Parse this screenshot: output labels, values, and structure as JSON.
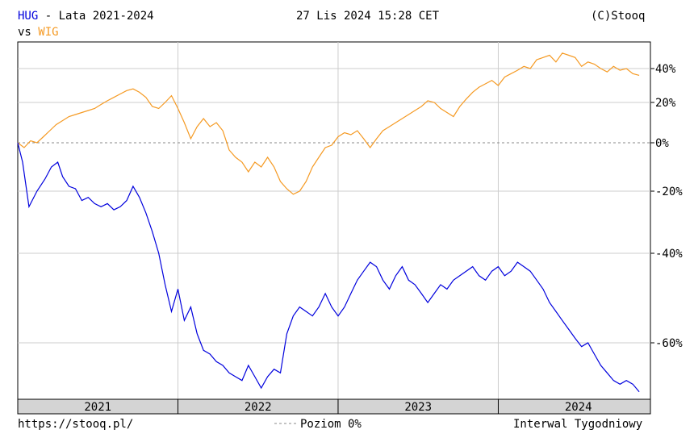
{
  "header": {
    "ticker": "HUG",
    "title_rest": " - Lata 2021-2024",
    "vs_label": "vs",
    "compare_ticker": "WIG",
    "datetime": "27 Lis 2024 15:28 CET",
    "copyright": "(C)Stooq"
  },
  "footer": {
    "url": "https://stooq.pl/",
    "level_label": "Poziom 0%",
    "interval": "Interwal Tygodniowy"
  },
  "colors": {
    "hug": "#0000dd",
    "wig": "#f59a23",
    "grid": "#cccccc",
    "zero_line": "#888888",
    "axis_band": "#d4d4d4"
  },
  "chart_data": {
    "type": "line",
    "x_unit": "year",
    "xlim": [
      2021.0,
      2024.95
    ],
    "ylim": [
      -75,
      52
    ],
    "y_scale": "custom-stooq",
    "y_ticks": [
      {
        "value": 40,
        "label": "40%"
      },
      {
        "value": 20,
        "label": "20%"
      },
      {
        "value": 0,
        "label": "0%"
      },
      {
        "value": -20,
        "label": "-20%"
      },
      {
        "value": -40,
        "label": "-40%"
      },
      {
        "value": -60,
        "label": "-60%"
      }
    ],
    "x_ticks": [
      {
        "value": 2021.5,
        "label": "2021"
      },
      {
        "value": 2022.5,
        "label": "2022"
      },
      {
        "value": 2023.5,
        "label": "2023"
      },
      {
        "value": 2024.5,
        "label": "2024"
      }
    ],
    "year_boundaries": [
      2022.0,
      2023.0,
      2024.0
    ],
    "grid": true,
    "zero_line_dashed": true,
    "series": [
      {
        "name": "HUG",
        "points": [
          [
            2021.0,
            0
          ],
          [
            2021.03,
            -8
          ],
          [
            2021.07,
            -25
          ],
          [
            2021.12,
            -20
          ],
          [
            2021.17,
            -15
          ],
          [
            2021.21,
            -10
          ],
          [
            2021.25,
            -8
          ],
          [
            2021.28,
            -14
          ],
          [
            2021.32,
            -18
          ],
          [
            2021.36,
            -19
          ],
          [
            2021.4,
            -23
          ],
          [
            2021.44,
            -22
          ],
          [
            2021.48,
            -24
          ],
          [
            2021.52,
            -25
          ],
          [
            2021.56,
            -24
          ],
          [
            2021.6,
            -26
          ],
          [
            2021.64,
            -25
          ],
          [
            2021.68,
            -23
          ],
          [
            2021.72,
            -18
          ],
          [
            2021.76,
            -22
          ],
          [
            2021.8,
            -27
          ],
          [
            2021.84,
            -33
          ],
          [
            2021.88,
            -40
          ],
          [
            2021.92,
            -47
          ],
          [
            2021.96,
            -53
          ],
          [
            2022.0,
            -48
          ],
          [
            2022.04,
            -55
          ],
          [
            2022.08,
            -52
          ],
          [
            2022.12,
            -58
          ],
          [
            2022.16,
            -62
          ],
          [
            2022.2,
            -63
          ],
          [
            2022.24,
            -65
          ],
          [
            2022.28,
            -66
          ],
          [
            2022.32,
            -68
          ],
          [
            2022.36,
            -69
          ],
          [
            2022.4,
            -70
          ],
          [
            2022.44,
            -66
          ],
          [
            2022.48,
            -69
          ],
          [
            2022.52,
            -72
          ],
          [
            2022.56,
            -69
          ],
          [
            2022.6,
            -67
          ],
          [
            2022.64,
            -68
          ],
          [
            2022.68,
            -58
          ],
          [
            2022.72,
            -54
          ],
          [
            2022.76,
            -52
          ],
          [
            2022.8,
            -53
          ],
          [
            2022.84,
            -54
          ],
          [
            2022.88,
            -52
          ],
          [
            2022.92,
            -49
          ],
          [
            2022.96,
            -52
          ],
          [
            2023.0,
            -54
          ],
          [
            2023.04,
            -52
          ],
          [
            2023.08,
            -49
          ],
          [
            2023.12,
            -46
          ],
          [
            2023.16,
            -44
          ],
          [
            2023.2,
            -42
          ],
          [
            2023.24,
            -43
          ],
          [
            2023.28,
            -46
          ],
          [
            2023.32,
            -48
          ],
          [
            2023.36,
            -45
          ],
          [
            2023.4,
            -43
          ],
          [
            2023.44,
            -46
          ],
          [
            2023.48,
            -47
          ],
          [
            2023.52,
            -49
          ],
          [
            2023.56,
            -51
          ],
          [
            2023.6,
            -49
          ],
          [
            2023.64,
            -47
          ],
          [
            2023.68,
            -48
          ],
          [
            2023.72,
            -46
          ],
          [
            2023.76,
            -45
          ],
          [
            2023.8,
            -44
          ],
          [
            2023.84,
            -43
          ],
          [
            2023.88,
            -45
          ],
          [
            2023.92,
            -46
          ],
          [
            2023.96,
            -44
          ],
          [
            2024.0,
            -43
          ],
          [
            2024.04,
            -45
          ],
          [
            2024.08,
            -44
          ],
          [
            2024.12,
            -42
          ],
          [
            2024.16,
            -43
          ],
          [
            2024.2,
            -44
          ],
          [
            2024.24,
            -46
          ],
          [
            2024.28,
            -48
          ],
          [
            2024.32,
            -51
          ],
          [
            2024.36,
            -53
          ],
          [
            2024.4,
            -55
          ],
          [
            2024.44,
            -57
          ],
          [
            2024.48,
            -59
          ],
          [
            2024.52,
            -61
          ],
          [
            2024.56,
            -60
          ],
          [
            2024.6,
            -63
          ],
          [
            2024.64,
            -66
          ],
          [
            2024.68,
            -68
          ],
          [
            2024.72,
            -70
          ],
          [
            2024.76,
            -71
          ],
          [
            2024.8,
            -70
          ],
          [
            2024.84,
            -71
          ],
          [
            2024.88,
            -73
          ]
        ]
      },
      {
        "name": "WIG",
        "points": [
          [
            2021.0,
            0
          ],
          [
            2021.04,
            -2
          ],
          [
            2021.08,
            1
          ],
          [
            2021.12,
            0
          ],
          [
            2021.16,
            3
          ],
          [
            2021.2,
            6
          ],
          [
            2021.24,
            9
          ],
          [
            2021.28,
            11
          ],
          [
            2021.32,
            13
          ],
          [
            2021.36,
            14
          ],
          [
            2021.4,
            15
          ],
          [
            2021.44,
            16
          ],
          [
            2021.48,
            17
          ],
          [
            2021.52,
            19
          ],
          [
            2021.56,
            21
          ],
          [
            2021.6,
            23
          ],
          [
            2021.64,
            25
          ],
          [
            2021.68,
            27
          ],
          [
            2021.72,
            28
          ],
          [
            2021.76,
            26
          ],
          [
            2021.8,
            23
          ],
          [
            2021.84,
            18
          ],
          [
            2021.88,
            17
          ],
          [
            2021.92,
            20
          ],
          [
            2021.96,
            24
          ],
          [
            2022.0,
            17
          ],
          [
            2022.04,
            10
          ],
          [
            2022.08,
            2
          ],
          [
            2022.12,
            8
          ],
          [
            2022.16,
            12
          ],
          [
            2022.2,
            8
          ],
          [
            2022.24,
            10
          ],
          [
            2022.28,
            6
          ],
          [
            2022.32,
            -3
          ],
          [
            2022.36,
            -6
          ],
          [
            2022.4,
            -8
          ],
          [
            2022.44,
            -12
          ],
          [
            2022.48,
            -8
          ],
          [
            2022.52,
            -10
          ],
          [
            2022.56,
            -6
          ],
          [
            2022.6,
            -10
          ],
          [
            2022.64,
            -16
          ],
          [
            2022.68,
            -19
          ],
          [
            2022.72,
            -21
          ],
          [
            2022.76,
            -20
          ],
          [
            2022.8,
            -16
          ],
          [
            2022.84,
            -10
          ],
          [
            2022.88,
            -6
          ],
          [
            2022.92,
            -2
          ],
          [
            2022.96,
            -1
          ],
          [
            2023.0,
            3
          ],
          [
            2023.04,
            5
          ],
          [
            2023.08,
            4
          ],
          [
            2023.12,
            6
          ],
          [
            2023.16,
            2
          ],
          [
            2023.2,
            -2
          ],
          [
            2023.24,
            2
          ],
          [
            2023.28,
            6
          ],
          [
            2023.32,
            8
          ],
          [
            2023.36,
            10
          ],
          [
            2023.4,
            12
          ],
          [
            2023.44,
            14
          ],
          [
            2023.48,
            16
          ],
          [
            2023.52,
            18
          ],
          [
            2023.56,
            21
          ],
          [
            2023.6,
            20
          ],
          [
            2023.64,
            17
          ],
          [
            2023.68,
            15
          ],
          [
            2023.72,
            13
          ],
          [
            2023.76,
            18
          ],
          [
            2023.8,
            22
          ],
          [
            2023.84,
            26
          ],
          [
            2023.88,
            29
          ],
          [
            2023.92,
            31
          ],
          [
            2023.96,
            33
          ],
          [
            2024.0,
            30
          ],
          [
            2024.04,
            35
          ],
          [
            2024.08,
            37
          ],
          [
            2024.12,
            39
          ],
          [
            2024.16,
            41
          ],
          [
            2024.2,
            40
          ],
          [
            2024.24,
            44
          ],
          [
            2024.28,
            45
          ],
          [
            2024.32,
            46
          ],
          [
            2024.36,
            43
          ],
          [
            2024.4,
            47
          ],
          [
            2024.44,
            46
          ],
          [
            2024.48,
            45
          ],
          [
            2024.52,
            41
          ],
          [
            2024.56,
            43
          ],
          [
            2024.6,
            42
          ],
          [
            2024.64,
            40
          ],
          [
            2024.68,
            38
          ],
          [
            2024.72,
            41
          ],
          [
            2024.76,
            39
          ],
          [
            2024.8,
            40
          ],
          [
            2024.84,
            37
          ],
          [
            2024.88,
            36
          ]
        ]
      }
    ]
  }
}
